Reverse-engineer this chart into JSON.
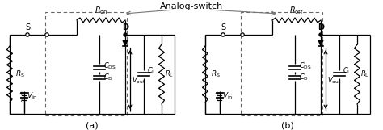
{
  "title": "Analog-switch",
  "fig_width": 4.74,
  "fig_height": 1.61,
  "dpi": 100,
  "bg_color": "#ffffff",
  "line_color": "#000000",
  "gray_color": "#777777",
  "label_a": "(a)",
  "label_b": "(b)",
  "label_S": "S",
  "label_D": "D",
  "label_RS": "$R_\\mathsf{S}$",
  "label_Vin": "$V_\\mathsf{in}$",
  "label_Ron": "$R_\\mathsf{on}$",
  "label_Roff": "$R_\\mathsf{off}$",
  "label_CDS": "$C_\\mathsf{DS}$",
  "label_CD": "$C_\\mathsf{D}$",
  "label_CL": "$C_\\mathsf{L}$",
  "label_RL": "$R_\\mathsf{L}$",
  "label_Vout": "$V_\\mathsf{out}$"
}
